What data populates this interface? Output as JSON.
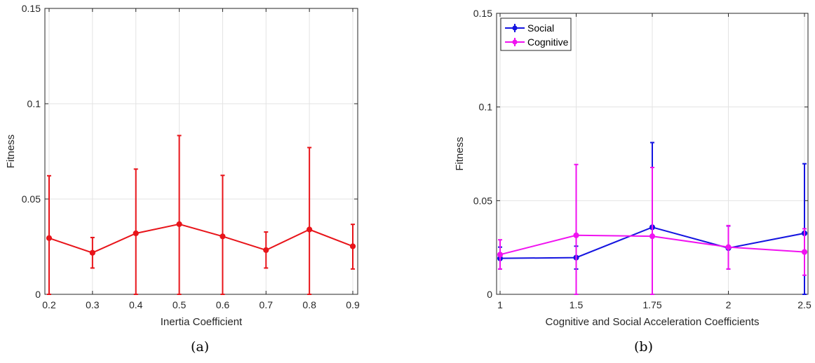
{
  "colors": {
    "panel_a_series": "#e8141a",
    "social": "#1414e0",
    "cognitive": "#f012f0",
    "grid": "#e3e3e3",
    "axis": "#262626"
  },
  "captions": {
    "a": "(a)",
    "b": "(b)"
  },
  "chart_data": [
    {
      "type": "line",
      "title": "",
      "xlabel": "Inertia Coefficient",
      "ylabel": "Fitness",
      "xlim": [
        0.2,
        0.9
      ],
      "ylim": [
        0,
        0.15
      ],
      "xticks": [
        0.2,
        0.3,
        0.4,
        0.5,
        0.6,
        0.7,
        0.8,
        0.9
      ],
      "xtick_labels": [
        "0.2",
        "0.3",
        "0.4",
        "0.5",
        "0.6",
        "0.7",
        "0.8",
        "0.9"
      ],
      "yticks": [
        0,
        0.05,
        0.1,
        0.15
      ],
      "ytick_labels": [
        "0",
        "0.05",
        "0.1",
        "0.15"
      ],
      "grid": true,
      "error_bars": true,
      "series": [
        {
          "x": [
            0.2,
            0.3,
            0.4,
            0.5,
            0.6,
            0.7,
            0.8,
            0.9
          ],
          "values": [
            0.0295,
            0.0218,
            0.032,
            0.0368,
            0.0304,
            0.0232,
            0.034,
            0.0252
          ],
          "error_low": [
            0.0,
            0.0138,
            0.0,
            0.0,
            0.0,
            0.0138,
            0.0,
            0.0133
          ],
          "error_high": [
            0.0622,
            0.0298,
            0.0657,
            0.0833,
            0.0624,
            0.0327,
            0.077,
            0.0367
          ]
        }
      ]
    },
    {
      "type": "line",
      "title": "",
      "xlabel": "Cognitive and Social Acceleration Coefficients",
      "ylabel": "Fitness",
      "categories": [
        "1",
        "1.5",
        "1.75",
        "2",
        "2.5"
      ],
      "ylim": [
        0,
        0.15
      ],
      "yticks": [
        0,
        0.05,
        0.1,
        0.15
      ],
      "ytick_labels": [
        "0",
        "0.05",
        "0.1",
        "0.15"
      ],
      "grid": true,
      "legend": "top-left",
      "error_bars": true,
      "series": [
        {
          "name": "Social",
          "values": [
            0.0192,
            0.0196,
            0.0358,
            0.0247,
            0.0326
          ],
          "error_low": [
            0.0135,
            0.0135,
            0.0,
            0.0135,
            0.0
          ],
          "error_high": [
            0.0252,
            0.0257,
            0.081,
            0.0365,
            0.0697
          ]
        },
        {
          "name": "Cognitive",
          "values": [
            0.0212,
            0.0315,
            0.031,
            0.0252,
            0.0226
          ],
          "error_low": [
            0.0135,
            0.0,
            0.0,
            0.0135,
            0.0102
          ],
          "error_high": [
            0.0291,
            0.0693,
            0.0677,
            0.0367,
            0.035
          ]
        }
      ]
    }
  ]
}
